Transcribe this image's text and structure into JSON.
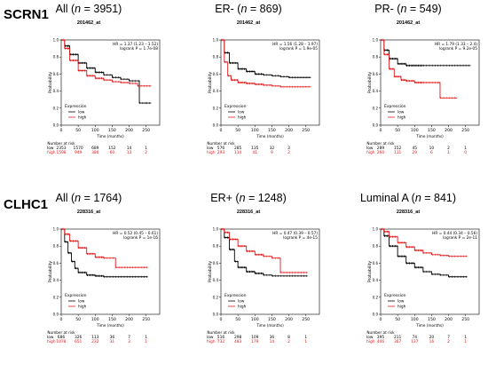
{
  "genes": [
    {
      "label": "SCRN1"
    },
    {
      "label": "CLHC1"
    }
  ],
  "axis_text": {
    "ylabel": "Probability",
    "xlabel": "Time (months)",
    "legend_title": "Expression",
    "legend_low": "low",
    "legend_high": "high",
    "risk_header": "Number at risk",
    "risk_low_label": "low",
    "risk_high_label": "high"
  },
  "colors": {
    "low": "#000000",
    "high": "#e41a1c"
  },
  "chart_data": [
    {
      "type": "line",
      "title_prefix": "All (",
      "title_n": "n",
      "title_suffix": " = 3951)",
      "probe": "201462_at",
      "hr": "HR = 1.37 (1.23 – 1.52)",
      "logrank": "logrank P = 1.7e-08",
      "xlim": [
        0,
        290
      ],
      "ylim": [
        0,
        1
      ],
      "xticks": [
        "0",
        "50",
        "100",
        "150",
        "200",
        "250"
      ],
      "yticks": [
        "0.0",
        "0.2",
        "0.4",
        "0.6",
        "0.8",
        "1.0"
      ],
      "series": [
        {
          "name": "low",
          "x": [
            0,
            10,
            25,
            50,
            75,
            100,
            125,
            150,
            175,
            200,
            225,
            230,
            250,
            265
          ],
          "y": [
            1.0,
            0.93,
            0.83,
            0.73,
            0.67,
            0.62,
            0.59,
            0.56,
            0.54,
            0.52,
            0.52,
            0.26,
            0.26,
            0.26
          ]
        },
        {
          "name": "high",
          "x": [
            0,
            10,
            25,
            50,
            75,
            100,
            125,
            150,
            175,
            200,
            225,
            250,
            265
          ],
          "y": [
            1.0,
            0.9,
            0.76,
            0.64,
            0.58,
            0.55,
            0.53,
            0.51,
            0.5,
            0.49,
            0.46,
            0.46,
            0.46
          ]
        }
      ],
      "risk_low": [
        "2353",
        "1570",
        "689",
        "152",
        "14",
        "1"
      ],
      "risk_high": [
        "1598",
        "949",
        "386",
        "60",
        "13",
        "2"
      ]
    },
    {
      "type": "line",
      "title_prefix": "ER- (",
      "title_n": "n",
      "title_suffix": " = 869)",
      "probe": "201462_at",
      "hr": "HR = 1.56 (1.28 – 1.97)",
      "logrank": "logrank P = 1.9e-05",
      "xlim": [
        0,
        290
      ],
      "ylim": [
        0,
        1
      ],
      "xticks": [
        "0",
        "50",
        "100",
        "150",
        "200",
        "250"
      ],
      "yticks": [
        "0.0",
        "0.2",
        "0.4",
        "0.6",
        "0.8",
        "1.0"
      ],
      "series": [
        {
          "name": "low",
          "x": [
            0,
            10,
            25,
            50,
            75,
            100,
            125,
            150,
            175,
            200,
            225,
            265
          ],
          "y": [
            1.0,
            0.85,
            0.73,
            0.66,
            0.63,
            0.6,
            0.59,
            0.58,
            0.57,
            0.56,
            0.56,
            0.56
          ]
        },
        {
          "name": "high",
          "x": [
            0,
            10,
            20,
            30,
            50,
            75,
            100,
            125,
            150,
            175,
            200,
            265
          ],
          "y": [
            1.0,
            0.74,
            0.58,
            0.53,
            0.5,
            0.49,
            0.48,
            0.47,
            0.46,
            0.45,
            0.45,
            0.45
          ]
        }
      ],
      "risk_low": [
        "576",
        "285",
        "135",
        "32",
        "3",
        ""
      ],
      "risk_high": [
        "293",
        "114",
        "41",
        "9",
        "2",
        ""
      ]
    },
    {
      "type": "line",
      "title_prefix": "PR- (",
      "title_n": "n",
      "title_suffix": " = 549)",
      "probe": "201462_at",
      "hr": "HR = 1.79 (1.33 – 2.4)",
      "logrank": "logrank P = 9.2e-05",
      "xlim": [
        0,
        290
      ],
      "ylim": [
        0,
        1
      ],
      "xticks": [
        "0",
        "50",
        "100",
        "150",
        "200",
        "250"
      ],
      "yticks": [
        "0.0",
        "0.2",
        "0.4",
        "0.6",
        "0.8",
        "1.0"
      ],
      "series": [
        {
          "name": "low",
          "x": [
            0,
            10,
            25,
            50,
            75,
            100,
            125,
            150,
            175,
            200,
            225,
            265
          ],
          "y": [
            1.0,
            0.88,
            0.78,
            0.72,
            0.7,
            0.7,
            0.7,
            0.7,
            0.7,
            0.7,
            0.7,
            0.7
          ]
        },
        {
          "name": "high",
          "x": [
            0,
            10,
            25,
            40,
            60,
            75,
            100,
            125,
            150,
            170,
            175,
            225
          ],
          "y": [
            1.0,
            0.83,
            0.66,
            0.57,
            0.53,
            0.52,
            0.5,
            0.5,
            0.5,
            0.5,
            0.32,
            0.32
          ]
        }
      ],
      "risk_low": [
        "289",
        "152",
        "45",
        "10",
        "2",
        "1"
      ],
      "risk_high": [
        "260",
        "111",
        "29",
        "6",
        "1",
        "0"
      ]
    },
    {
      "type": "line",
      "title_prefix": "All (",
      "title_n": "n",
      "title_suffix": " = 1764)",
      "probe": "228316_at",
      "hr": "HR = 0.52 (0.45 – 0.61)",
      "logrank": "logrank P = 1e-16",
      "xlim": [
        0,
        290
      ],
      "ylim": [
        0,
        1
      ],
      "xticks": [
        "0",
        "50",
        "100",
        "150",
        "200",
        "250"
      ],
      "yticks": [
        "0.0",
        "0.2",
        "0.4",
        "0.6",
        "0.8",
        "1.0"
      ],
      "series": [
        {
          "name": "low",
          "x": [
            0,
            10,
            20,
            30,
            40,
            50,
            75,
            100,
            125,
            150,
            175,
            200,
            225,
            255
          ],
          "y": [
            1.0,
            0.85,
            0.72,
            0.62,
            0.54,
            0.49,
            0.46,
            0.45,
            0.44,
            0.44,
            0.44,
            0.44,
            0.44,
            0.44
          ]
        },
        {
          "name": "high",
          "x": [
            0,
            10,
            25,
            50,
            75,
            100,
            125,
            150,
            160,
            200,
            255
          ],
          "y": [
            1.0,
            0.94,
            0.86,
            0.78,
            0.71,
            0.67,
            0.66,
            0.66,
            0.55,
            0.55,
            0.55
          ]
        }
      ],
      "risk_low": [
        "686",
        "326",
        "113",
        "36",
        "7",
        "1"
      ],
      "risk_high": [
        "1078",
        "651",
        "232",
        "31",
        "3",
        "1"
      ]
    },
    {
      "type": "line",
      "title_prefix": "ER+ (",
      "title_n": "n",
      "title_suffix": " = 1248)",
      "probe": "228316_at",
      "hr": "HR = 0.47 (0.39 – 0.57)",
      "logrank": "logrank P = 4e-15",
      "xlim": [
        0,
        290
      ],
      "ylim": [
        0,
        1
      ],
      "xticks": [
        "0",
        "50",
        "100",
        "150",
        "200",
        "250"
      ],
      "yticks": [
        "0.0",
        "0.2",
        "0.4",
        "0.6",
        "0.8",
        "1.0"
      ],
      "series": [
        {
          "name": "low",
          "x": [
            0,
            10,
            25,
            40,
            50,
            75,
            100,
            125,
            150,
            175,
            200,
            225,
            255
          ],
          "y": [
            1.0,
            0.9,
            0.76,
            0.62,
            0.55,
            0.5,
            0.48,
            0.46,
            0.45,
            0.45,
            0.45,
            0.45,
            0.45
          ]
        },
        {
          "name": "high",
          "x": [
            0,
            10,
            25,
            50,
            75,
            100,
            125,
            150,
            170,
            175,
            200,
            255
          ],
          "y": [
            1.0,
            0.96,
            0.88,
            0.8,
            0.74,
            0.7,
            0.68,
            0.66,
            0.66,
            0.49,
            0.49,
            0.49
          ]
        }
      ],
      "risk_low": [
        "516",
        "298",
        "109",
        "36",
        "8",
        "1"
      ],
      "risk_high": [
        "732",
        "483",
        "179",
        "14",
        "2",
        "1"
      ]
    },
    {
      "type": "line",
      "title_prefix": "Luminal A (",
      "title_n": "n",
      "title_suffix": " = 841)",
      "probe": "228316_at",
      "hr": "HR = 0.44 (0.34 – 0.56)",
      "logrank": "logrank P = 2e-11",
      "xlim": [
        0,
        290
      ],
      "ylim": [
        0,
        1
      ],
      "xticks": [
        "0",
        "50",
        "100",
        "150",
        "200",
        "250"
      ],
      "yticks": [
        "0.0",
        "0.2",
        "0.4",
        "0.6",
        "0.8",
        "1.0"
      ],
      "series": [
        {
          "name": "low",
          "x": [
            0,
            10,
            25,
            50,
            75,
            100,
            125,
            150,
            175,
            200,
            225,
            255
          ],
          "y": [
            1.0,
            0.92,
            0.8,
            0.68,
            0.6,
            0.55,
            0.5,
            0.47,
            0.46,
            0.44,
            0.44,
            0.44
          ]
        },
        {
          "name": "high",
          "x": [
            0,
            10,
            25,
            50,
            75,
            100,
            125,
            150,
            175,
            200,
            225,
            255
          ],
          "y": [
            1.0,
            0.97,
            0.91,
            0.84,
            0.79,
            0.75,
            0.72,
            0.7,
            0.69,
            0.68,
            0.68,
            0.68
          ]
        }
      ],
      "risk_low": [
        "395",
        "211",
        "74",
        "20",
        "7",
        "1"
      ],
      "risk_high": [
        "446",
        "367",
        "137",
        "16",
        "2",
        "1"
      ]
    }
  ]
}
